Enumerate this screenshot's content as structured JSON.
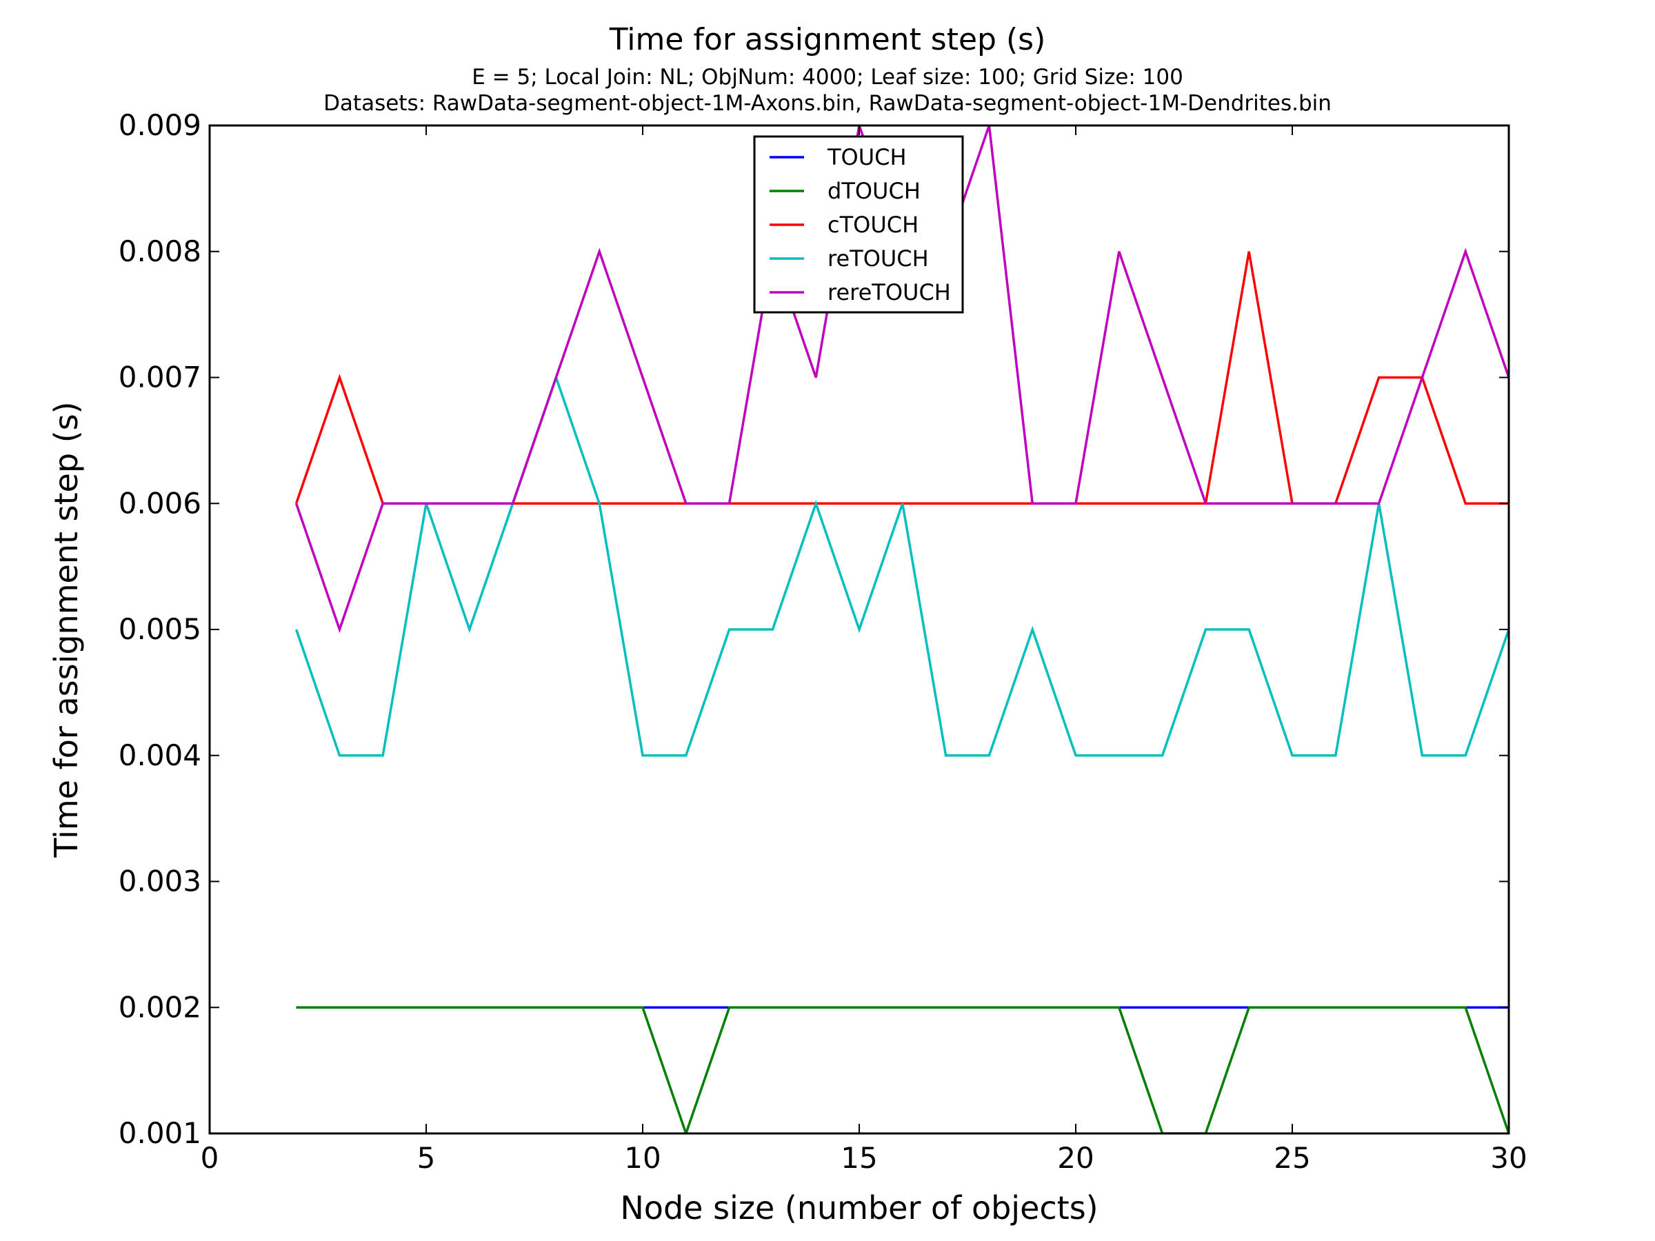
{
  "chart_data": {
    "type": "line",
    "title": "Time for assignment step (s)",
    "subtitle_lines": [
      "E = 5; Local Join: NL; ObjNum: 4000; Leaf size: 100; Grid Size: 100",
      "Datasets: RawData-segment-object-1M-Axons.bin, RawData-segment-object-1M-Dendrites.bin"
    ],
    "xlabel": "Node size (number of objects)",
    "ylabel": "Time for assignment step (s)",
    "xlim": [
      0,
      30
    ],
    "ylim": [
      0.001,
      0.009
    ],
    "xticks": [
      0,
      5,
      10,
      15,
      20,
      25,
      30
    ],
    "yticks": [
      0.001,
      0.002,
      0.003,
      0.004,
      0.005,
      0.006,
      0.007,
      0.008,
      0.009
    ],
    "xtick_labels": [
      "0",
      "5",
      "10",
      "15",
      "20",
      "25",
      "30"
    ],
    "ytick_labels": [
      "0.001",
      "0.002",
      "0.003",
      "0.004",
      "0.005",
      "0.006",
      "0.007",
      "0.008",
      "0.009"
    ],
    "grid": false,
    "legend_position": "top-center",
    "x": [
      2,
      3,
      4,
      5,
      6,
      7,
      8,
      9,
      10,
      11,
      12,
      13,
      14,
      15,
      16,
      17,
      18,
      19,
      20,
      21,
      22,
      23,
      24,
      25,
      26,
      27,
      28,
      29,
      30
    ],
    "series": [
      {
        "name": "TOUCH",
        "color": "#0000ff",
        "values": [
          0.002,
          0.002,
          0.002,
          0.002,
          0.002,
          0.002,
          0.002,
          0.002,
          0.002,
          0.002,
          0.002,
          0.002,
          0.002,
          0.002,
          0.002,
          0.002,
          0.002,
          0.002,
          0.002,
          0.002,
          0.002,
          0.002,
          0.002,
          0.002,
          0.002,
          0.002,
          0.002,
          0.002,
          0.002
        ]
      },
      {
        "name": "dTOUCH",
        "color": "#008000",
        "values": [
          0.002,
          0.002,
          0.002,
          0.002,
          0.002,
          0.002,
          0.002,
          0.002,
          0.002,
          0.001,
          0.002,
          0.002,
          0.002,
          0.002,
          0.002,
          0.002,
          0.002,
          0.002,
          0.002,
          0.002,
          0.001,
          0.001,
          0.002,
          0.002,
          0.002,
          0.002,
          0.002,
          0.002,
          0.001
        ]
      },
      {
        "name": "cTOUCH",
        "color": "#ff0000",
        "values": [
          0.006,
          0.007,
          0.006,
          0.006,
          0.006,
          0.006,
          0.006,
          0.006,
          0.006,
          0.006,
          0.006,
          0.006,
          0.006,
          0.006,
          0.006,
          0.006,
          0.006,
          0.006,
          0.006,
          0.006,
          0.006,
          0.006,
          0.008,
          0.006,
          0.006,
          0.007,
          0.007,
          0.006,
          0.006
        ]
      },
      {
        "name": "reTOUCH",
        "color": "#00bfbf",
        "values": [
          0.005,
          0.004,
          0.004,
          0.006,
          0.005,
          0.006,
          0.007,
          0.006,
          0.004,
          0.004,
          0.005,
          0.005,
          0.006,
          0.005,
          0.006,
          0.004,
          0.004,
          0.005,
          0.004,
          0.004,
          0.004,
          0.005,
          0.005,
          0.004,
          0.004,
          0.006,
          0.004,
          0.004,
          0.005
        ]
      },
      {
        "name": "rereTOUCH",
        "color": "#bf00bf",
        "values": [
          0.006,
          0.005,
          0.006,
          0.006,
          0.006,
          0.006,
          0.007,
          0.008,
          0.007,
          0.006,
          0.006,
          0.008,
          0.007,
          0.009,
          0.008,
          0.008,
          0.009,
          0.006,
          0.006,
          0.008,
          0.007,
          0.006,
          0.006,
          0.006,
          0.006,
          0.006,
          0.007,
          0.008,
          0.007
        ]
      }
    ]
  }
}
